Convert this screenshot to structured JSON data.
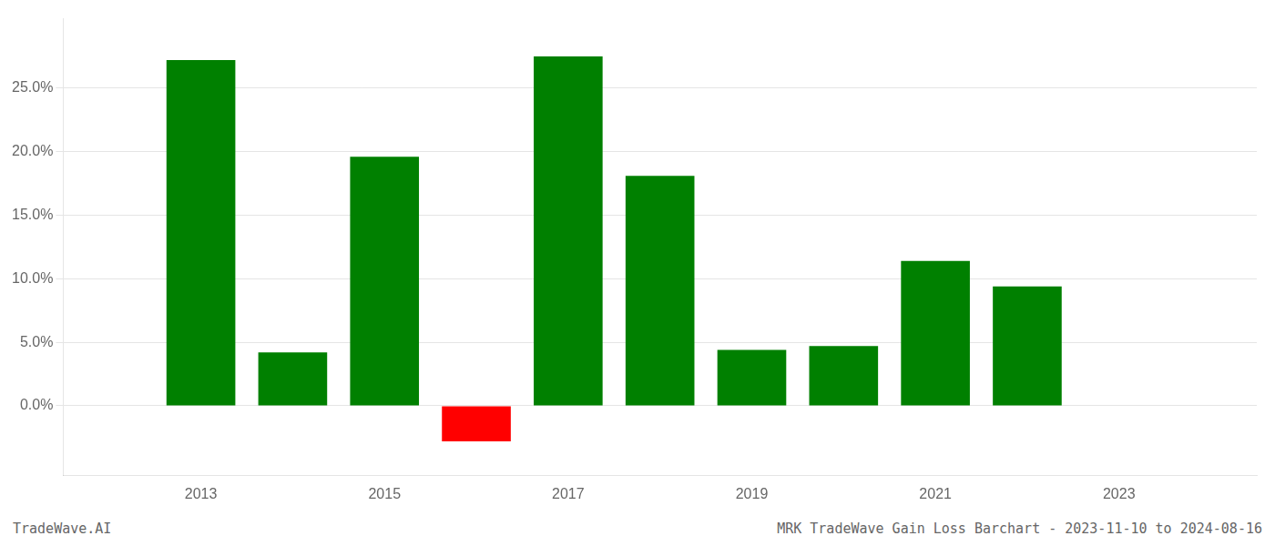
{
  "chart_data": {
    "type": "bar",
    "x": [
      2013,
      2014,
      2015,
      2016,
      2017,
      2018,
      2019,
      2020,
      2021,
      2022,
      2023
    ],
    "values": [
      0.272,
      0.042,
      0.196,
      -0.028,
      0.275,
      0.181,
      0.044,
      0.047,
      0.114,
      0.094,
      0.0
    ],
    "colors": [
      "#008000",
      "#008000",
      "#008000",
      "#ff0000",
      "#008000",
      "#008000",
      "#008000",
      "#008000",
      "#008000",
      "#008000",
      "#008000"
    ],
    "xlim": [
      2011.5,
      2024.5
    ],
    "xticks": [
      2013,
      2015,
      2017,
      2019,
      2021,
      2023
    ],
    "ylim": [
      -0.055,
      0.305
    ],
    "yticks": [
      {
        "value": 0.0,
        "label": "0.0%"
      },
      {
        "value": 0.05,
        "label": "5.0%"
      },
      {
        "value": 0.1,
        "label": "10.0%"
      },
      {
        "value": 0.15,
        "label": "15.0%"
      },
      {
        "value": 0.2,
        "label": "20.0%"
      },
      {
        "value": 0.25,
        "label": "25.0%"
      }
    ],
    "grid": true,
    "annotations": [
      "TradeWave.AI",
      "MRK TradeWave Gain Loss Barchart - 2023-11-10 to 2024-08-16"
    ]
  }
}
